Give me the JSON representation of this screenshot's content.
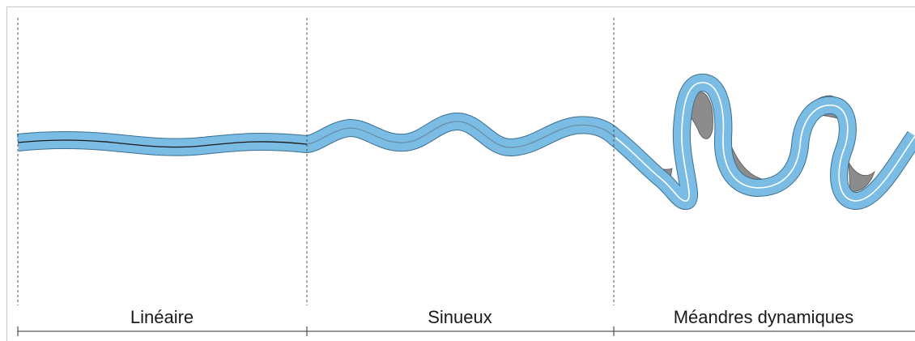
{
  "sections": [
    {
      "id": "lineaire",
      "label": "Linéaire"
    },
    {
      "id": "sinueux",
      "label": "Sinueux"
    },
    {
      "id": "meandres",
      "label": "Méandres dynamiques"
    }
  ],
  "colors": {
    "river_fill": "#7bbce5",
    "river_edge": "#3b6f8f",
    "centerline_linear": "#1a1a1a",
    "centerline_sinuous": "#6a8fa5",
    "centerline_meander": "#ffffff",
    "migration_zone": "#8c8c8c",
    "divider": "#444444",
    "baseline": "#333333"
  }
}
